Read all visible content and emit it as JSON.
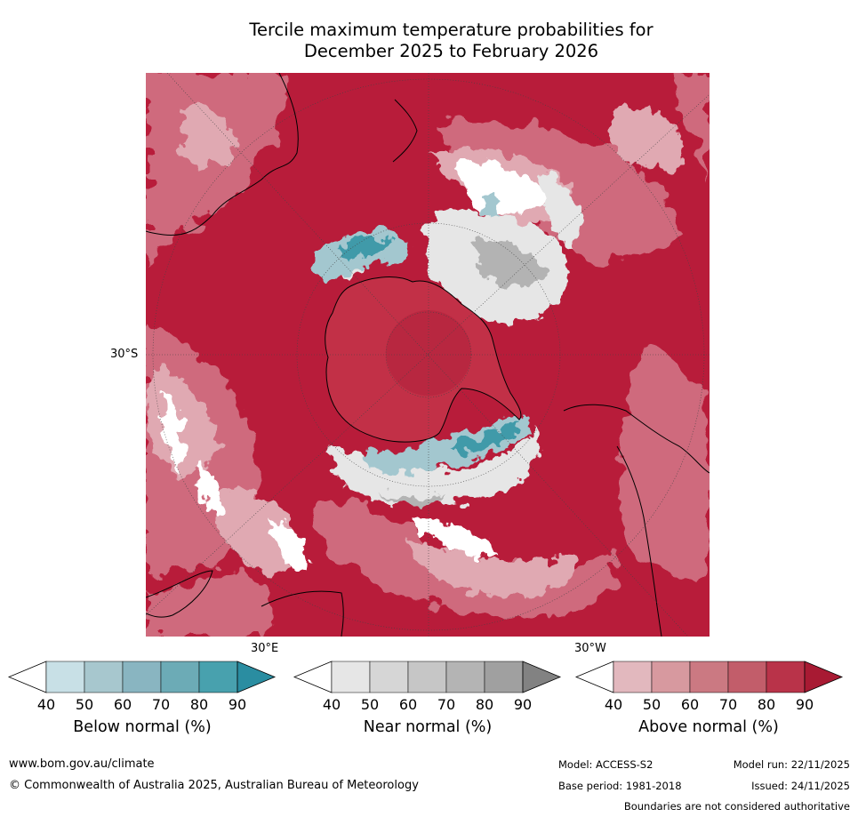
{
  "title_line1": "Tercile maximum temperature probabilities for",
  "title_line2": "December 2025 to February 2026",
  "map": {
    "lat_label": "30°S",
    "lon_label_east": "30°E",
    "lon_label_west": "30°W",
    "colors": {
      "background_high": "#b81c3a",
      "above_mid": "#cf6b7d",
      "above_low": "#e0a9b2",
      "near": "#e6e6e6",
      "near_dark": "#b3b3b3",
      "below": "#a3c7cf",
      "below_dark": "#3f9aa9",
      "coast": "#000000",
      "polar_cap": "#c23047"
    }
  },
  "colorbars": [
    {
      "id": "below",
      "label": "Below normal (%)",
      "ticks": [
        "40",
        "50",
        "60",
        "70",
        "80",
        "90"
      ],
      "colors": [
        "#c8e0e6",
        "#a7c7ce",
        "#89b5c1",
        "#6cabb6",
        "#48a1ae",
        "#2a8da1"
      ]
    },
    {
      "id": "near",
      "label": "Near normal (%)",
      "ticks": [
        "40",
        "50",
        "60",
        "70",
        "80",
        "90"
      ],
      "colors": [
        "#e6e6e6",
        "#d6d6d6",
        "#c6c6c6",
        "#b4b4b4",
        "#a0a0a0",
        "#828282"
      ]
    },
    {
      "id": "above",
      "label": "Above normal (%)",
      "ticks": [
        "40",
        "50",
        "60",
        "70",
        "80",
        "90"
      ],
      "colors": [
        "#e2b8be",
        "#d7999f",
        "#cb7982",
        "#c25d6a",
        "#b93349",
        "#a81a33"
      ]
    }
  ],
  "footer": {
    "website": "www.bom.gov.au/climate",
    "copyright": "© Commonwealth of Australia 2025, Australian Bureau of Meteorology",
    "model": "Model: ACCESS-S2",
    "model_run": "Model run: 22/11/2025",
    "base_period": "Base period: 1981-2018",
    "issued": "Issued: 24/11/2025",
    "disclaimer": "Boundaries are not considered authoritative"
  }
}
